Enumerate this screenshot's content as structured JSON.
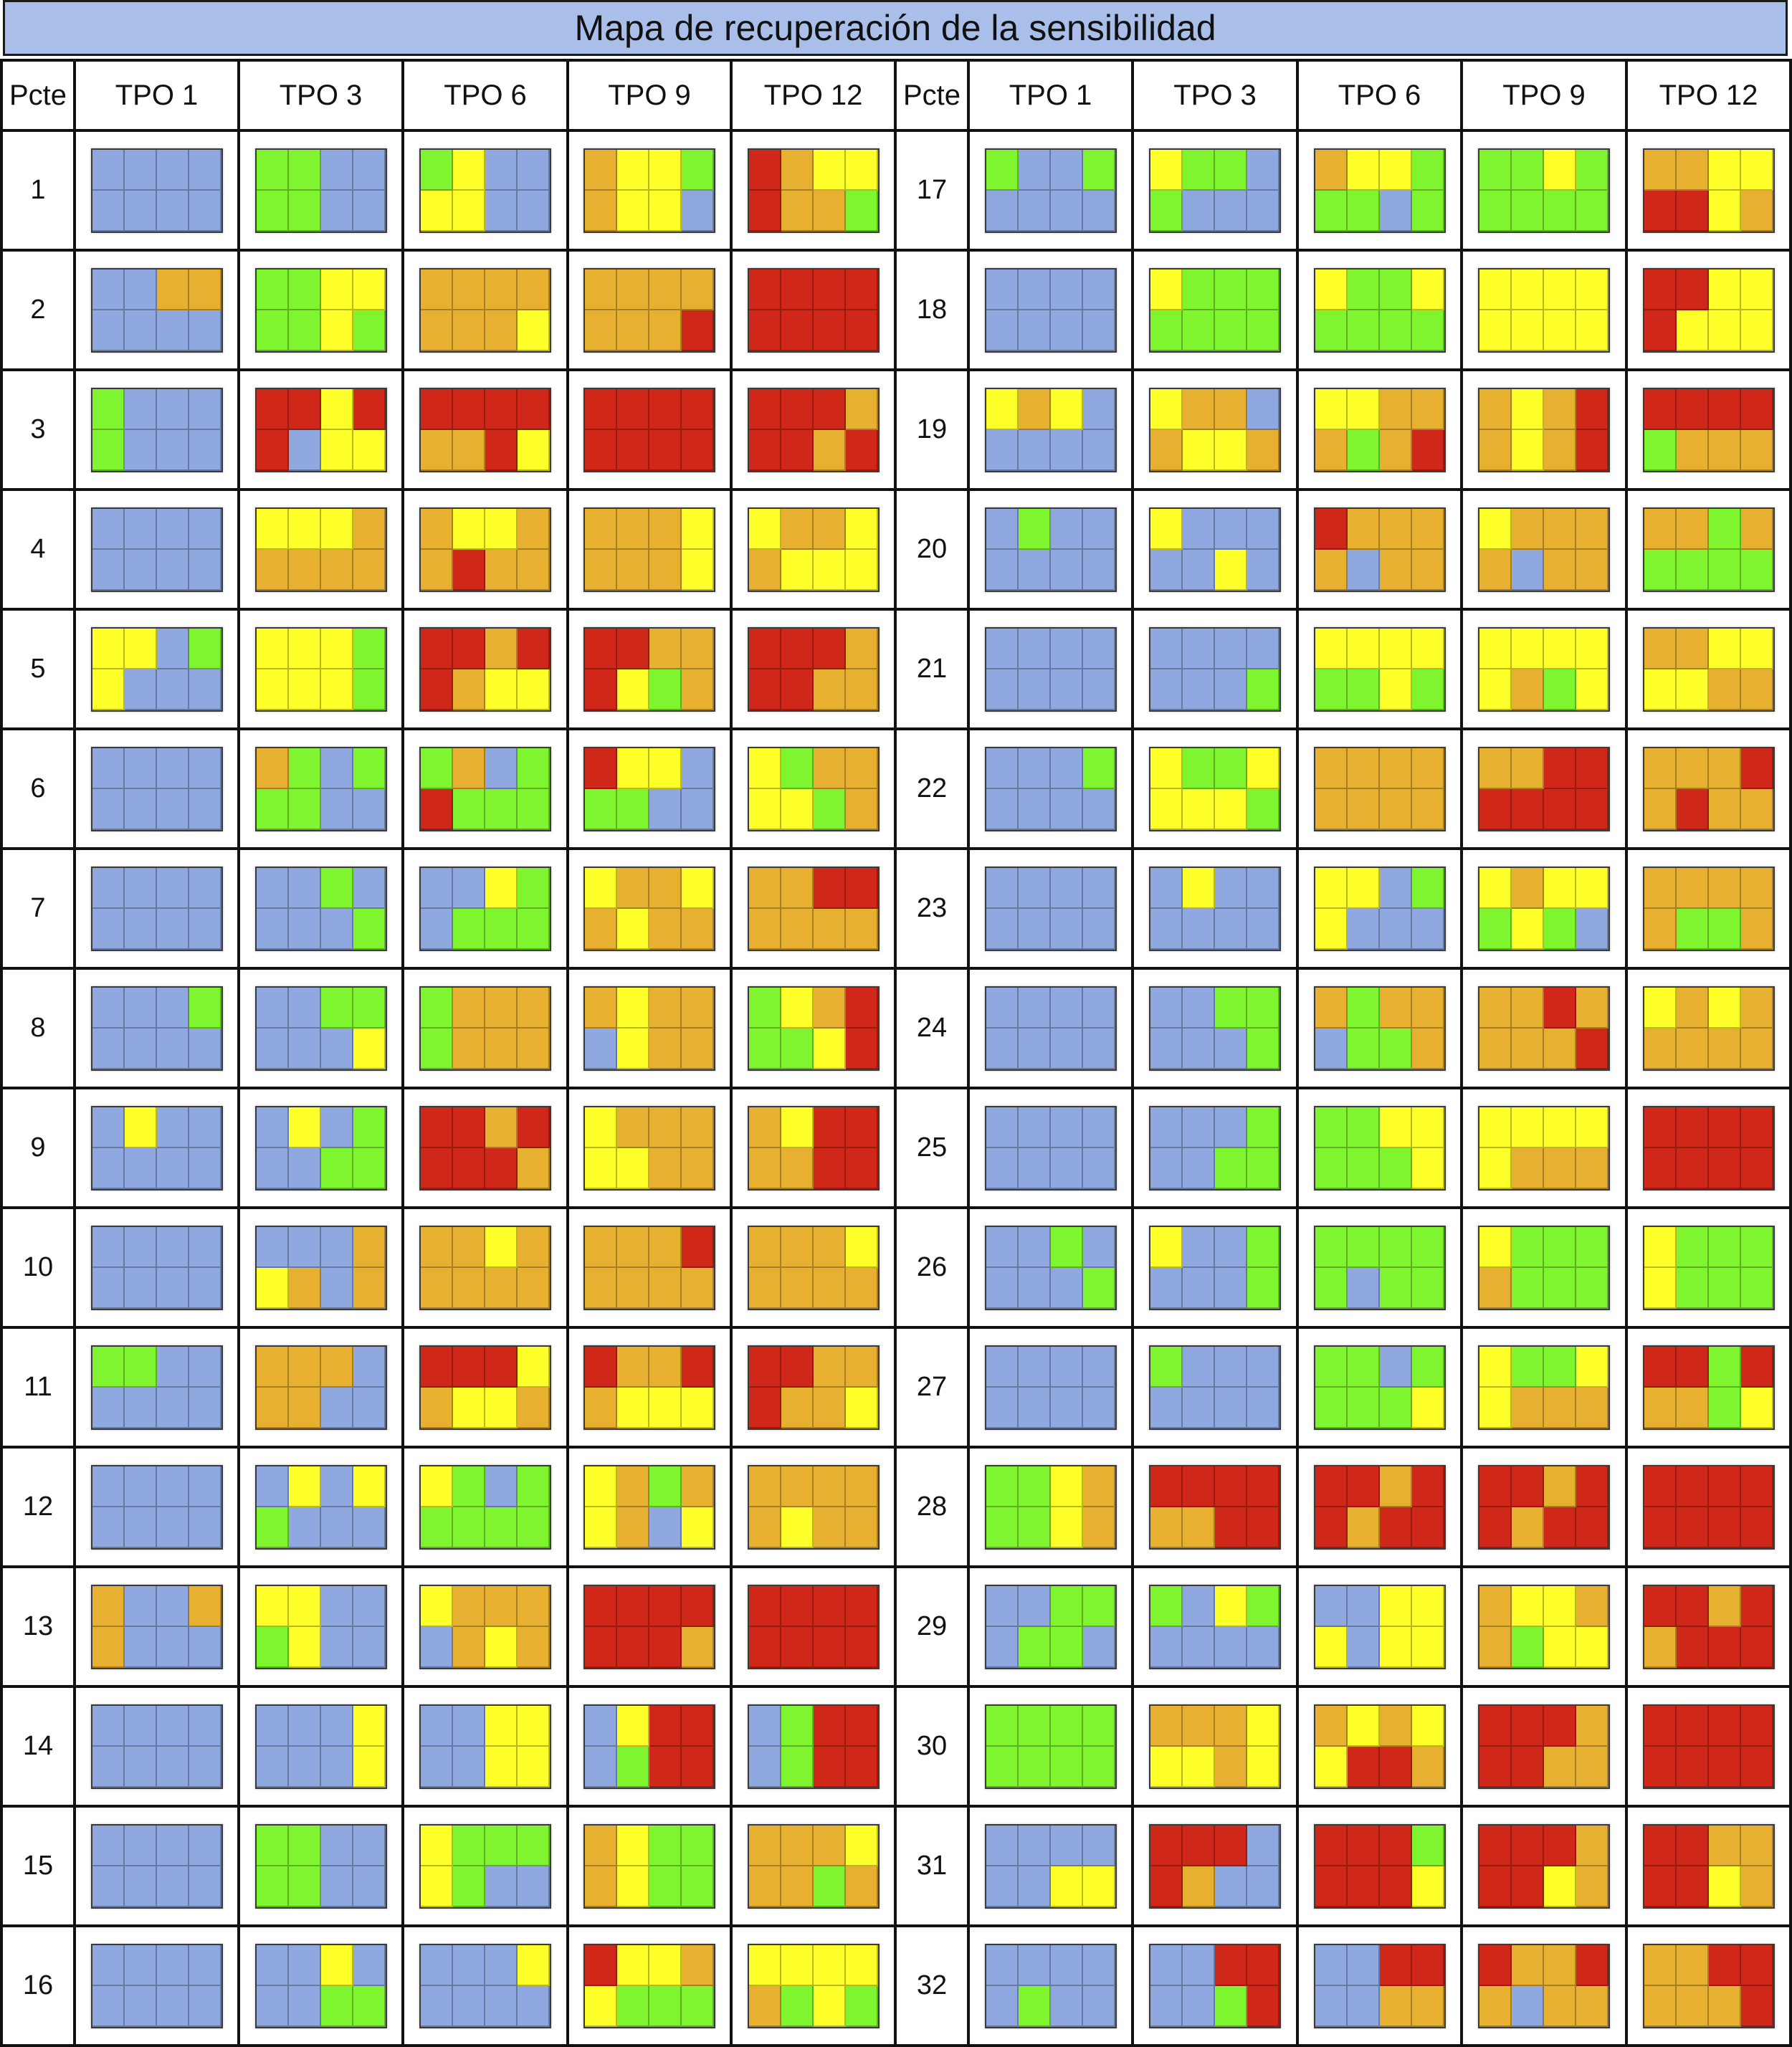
{
  "title": "Mapa de recuperación de la sensibilidad",
  "headers": [
    "Pcte",
    "TPO 1",
    "TPO 3",
    "TPO 6",
    "TPO 9",
    "TPO 12"
  ],
  "colors": {
    "B": "#8fa8e0",
    "G": "#7ef52e",
    "Y": "#ffff2a",
    "O": "#e8b030",
    "R": "#d02818"
  },
  "color_names": {
    "B": "blue",
    "G": "green",
    "Y": "yellow",
    "O": "orange",
    "R": "red"
  },
  "patients": [
    {
      "id": "1",
      "maps": [
        "BBBB/BBBB",
        "GGBB/GGBB",
        "GYBB/YYBB",
        "OYYG/OYYB",
        "ROYY/ROOG"
      ]
    },
    {
      "id": "2",
      "maps": [
        "BBOO/BBBB",
        "GGYY/GGYG",
        "OOOO/OOOY",
        "OOOO/OOOR",
        "RRRR/RRRR"
      ]
    },
    {
      "id": "3",
      "maps": [
        "GBBB/GBBB",
        "RRYR/RBYY",
        "RRRR/OORY",
        "RRRR/RRRR",
        "RRRO/RROR"
      ]
    },
    {
      "id": "4",
      "maps": [
        "BBBB/BBBB",
        "YYYO/OOOO",
        "OYYO/OROO",
        "OOOY/OOOY",
        "YOOY/OYYY"
      ]
    },
    {
      "id": "5",
      "maps": [
        "YYBG/YBBB",
        "YYYG/YYYG",
        "RROR/ROYY",
        "RROO/RYGO",
        "RRRO/RROO"
      ]
    },
    {
      "id": "6",
      "maps": [
        "BBBB/BBBB",
        "OGBG/GGBB",
        "GOBG/RGGG",
        "RYYB/GGBB",
        "YGOO/YYGO"
      ]
    },
    {
      "id": "7",
      "maps": [
        "BBBB/BBBB",
        "BBGB/BBBG",
        "BBYG/BGGG",
        "YOOY/OYOO",
        "OORR/OOOO"
      ]
    },
    {
      "id": "8",
      "maps": [
        "BBBG/BBBB",
        "BBGG/BBBY",
        "GOOO/GOOO",
        "OYOO/BYOO",
        "GYOR/GGYR"
      ]
    },
    {
      "id": "9",
      "maps": [
        "BYBB/BBBB",
        "BYBG/BBGG",
        "RROR/RRRO",
        "YOOO/YYOO",
        "OYRR/OORR"
      ]
    },
    {
      "id": "10",
      "maps": [
        "BBBB/BBBB",
        "BBBO/YOBO",
        "OOYO/OOOO",
        "OOOR/OOOO",
        "OOOY/OOOO"
      ]
    },
    {
      "id": "11",
      "maps": [
        "GGBB/BBBB",
        "OOOB/OOBB",
        "RRRY/OYYO",
        "ROOR/OYYY",
        "RROO/ROOY"
      ]
    },
    {
      "id": "12",
      "maps": [
        "BBBB/BBBB",
        "BYBY/GBBB",
        "YGBG/GGGG",
        "YOGO/YOBY",
        "OOOO/OYOO"
      ]
    },
    {
      "id": "13",
      "maps": [
        "OBBO/OBBB",
        "YYBB/GYBB",
        "YOOO/BOYO",
        "RRRR/RRRO",
        "RRRR/RRRR"
      ]
    },
    {
      "id": "14",
      "maps": [
        "BBBB/BBBB",
        "BBBY/BBBY",
        "BBYY/BBYY",
        "BYRR/BGRR",
        "BGRR/BGRR"
      ]
    },
    {
      "id": "15",
      "maps": [
        "BBBB/BBBB",
        "GGBB/GGBB",
        "YGGG/YGBB",
        "OYGG/OYGG",
        "OOOY/OOGO"
      ]
    },
    {
      "id": "16",
      "maps": [
        "BBBB/BBBB",
        "BBYB/BBGG",
        "BBBY/BBBB",
        "RYYO/YGGG",
        "YYYY/OGYG"
      ]
    },
    {
      "id": "17",
      "maps": [
        "GBBG/BBBB",
        "YGGB/GBBB",
        "OYYG/GGBG",
        "GGYG/GGGG",
        "OOYY/RRYO"
      ]
    },
    {
      "id": "18",
      "maps": [
        "BBBB/BBBB",
        "YGGG/GGGG",
        "YGGY/GGGG",
        "YYYY/YYYY",
        "RRYY/RYYY"
      ]
    },
    {
      "id": "19",
      "maps": [
        "YOYB/BBBB",
        "YOOB/OYYO",
        "YYOO/OGOR",
        "OYOR/OYOR",
        "RRRR/GOOO"
      ]
    },
    {
      "id": "20",
      "maps": [
        "BGBB/BBBB",
        "YBBB/BBYB",
        "ROOO/OBOO",
        "YOOO/OBOO",
        "OOGO/GGGG"
      ]
    },
    {
      "id": "21",
      "maps": [
        "BBBB/BBBB",
        "BBBB/BBBG",
        "YYYY/GGYG",
        "YYYY/YOGY",
        "OOYY/YYOO"
      ]
    },
    {
      "id": "22",
      "maps": [
        "BBBG/BBBB",
        "YGGY/YYYG",
        "OOOO/OOOO",
        "OORR/RRRR",
        "OOOR/OROO"
      ]
    },
    {
      "id": "23",
      "maps": [
        "BBBB/BBBB",
        "BYBB/BBBB",
        "YYBG/YBBB",
        "YOYY/GYGB",
        "OOOO/OGGO"
      ]
    },
    {
      "id": "24",
      "maps": [
        "BBBB/BBBB",
        "BBGG/BBBG",
        "OGOO/BGGO",
        "OORO/OOOR",
        "YOYO/OOOO"
      ]
    },
    {
      "id": "25",
      "maps": [
        "BBBB/BBBB",
        "BBBG/BBGG",
        "GGYY/GGGY",
        "YYYY/YOOO",
        "RRRR/RRRR"
      ]
    },
    {
      "id": "26",
      "maps": [
        "BBGB/BBBG",
        "YBBG/BBBG",
        "GGGG/GBGG",
        "YGGG/OGGG",
        "YGGG/YGGG"
      ]
    },
    {
      "id": "27",
      "maps": [
        "BBBB/BBBB",
        "GBBB/BBBB",
        "GGBG/GGGY",
        "YGGY/YOOO",
        "RRGR/OOGY"
      ]
    },
    {
      "id": "28",
      "maps": [
        "GGYO/GGYO",
        "RRRR/OORR",
        "RROR/RORR",
        "RROR/RORR",
        "RRRR/RRRR"
      ]
    },
    {
      "id": "29",
      "maps": [
        "BBGG/BGGB",
        "GBYG/BBBB",
        "BBYY/YBYY",
        "OYYO/OGYY",
        "RROR/ORRR"
      ]
    },
    {
      "id": "30",
      "maps": [
        "GGGG/GGGG",
        "OOOY/YYOY",
        "OYOY/YRRO",
        "RRRO/RROO",
        "RRRR/RRRR"
      ]
    },
    {
      "id": "31",
      "maps": [
        "BBBB/BBYY",
        "RRRB/ROBB",
        "RRRG/RRRY",
        "RRRO/RRYO",
        "RROO/RRYO"
      ]
    },
    {
      "id": "32",
      "maps": [
        "BBBB/BGBB",
        "BBRR/BBGR",
        "BBRR/BBOO",
        "ROOR/OBOO",
        "OORR/OOOR"
      ]
    }
  ]
}
